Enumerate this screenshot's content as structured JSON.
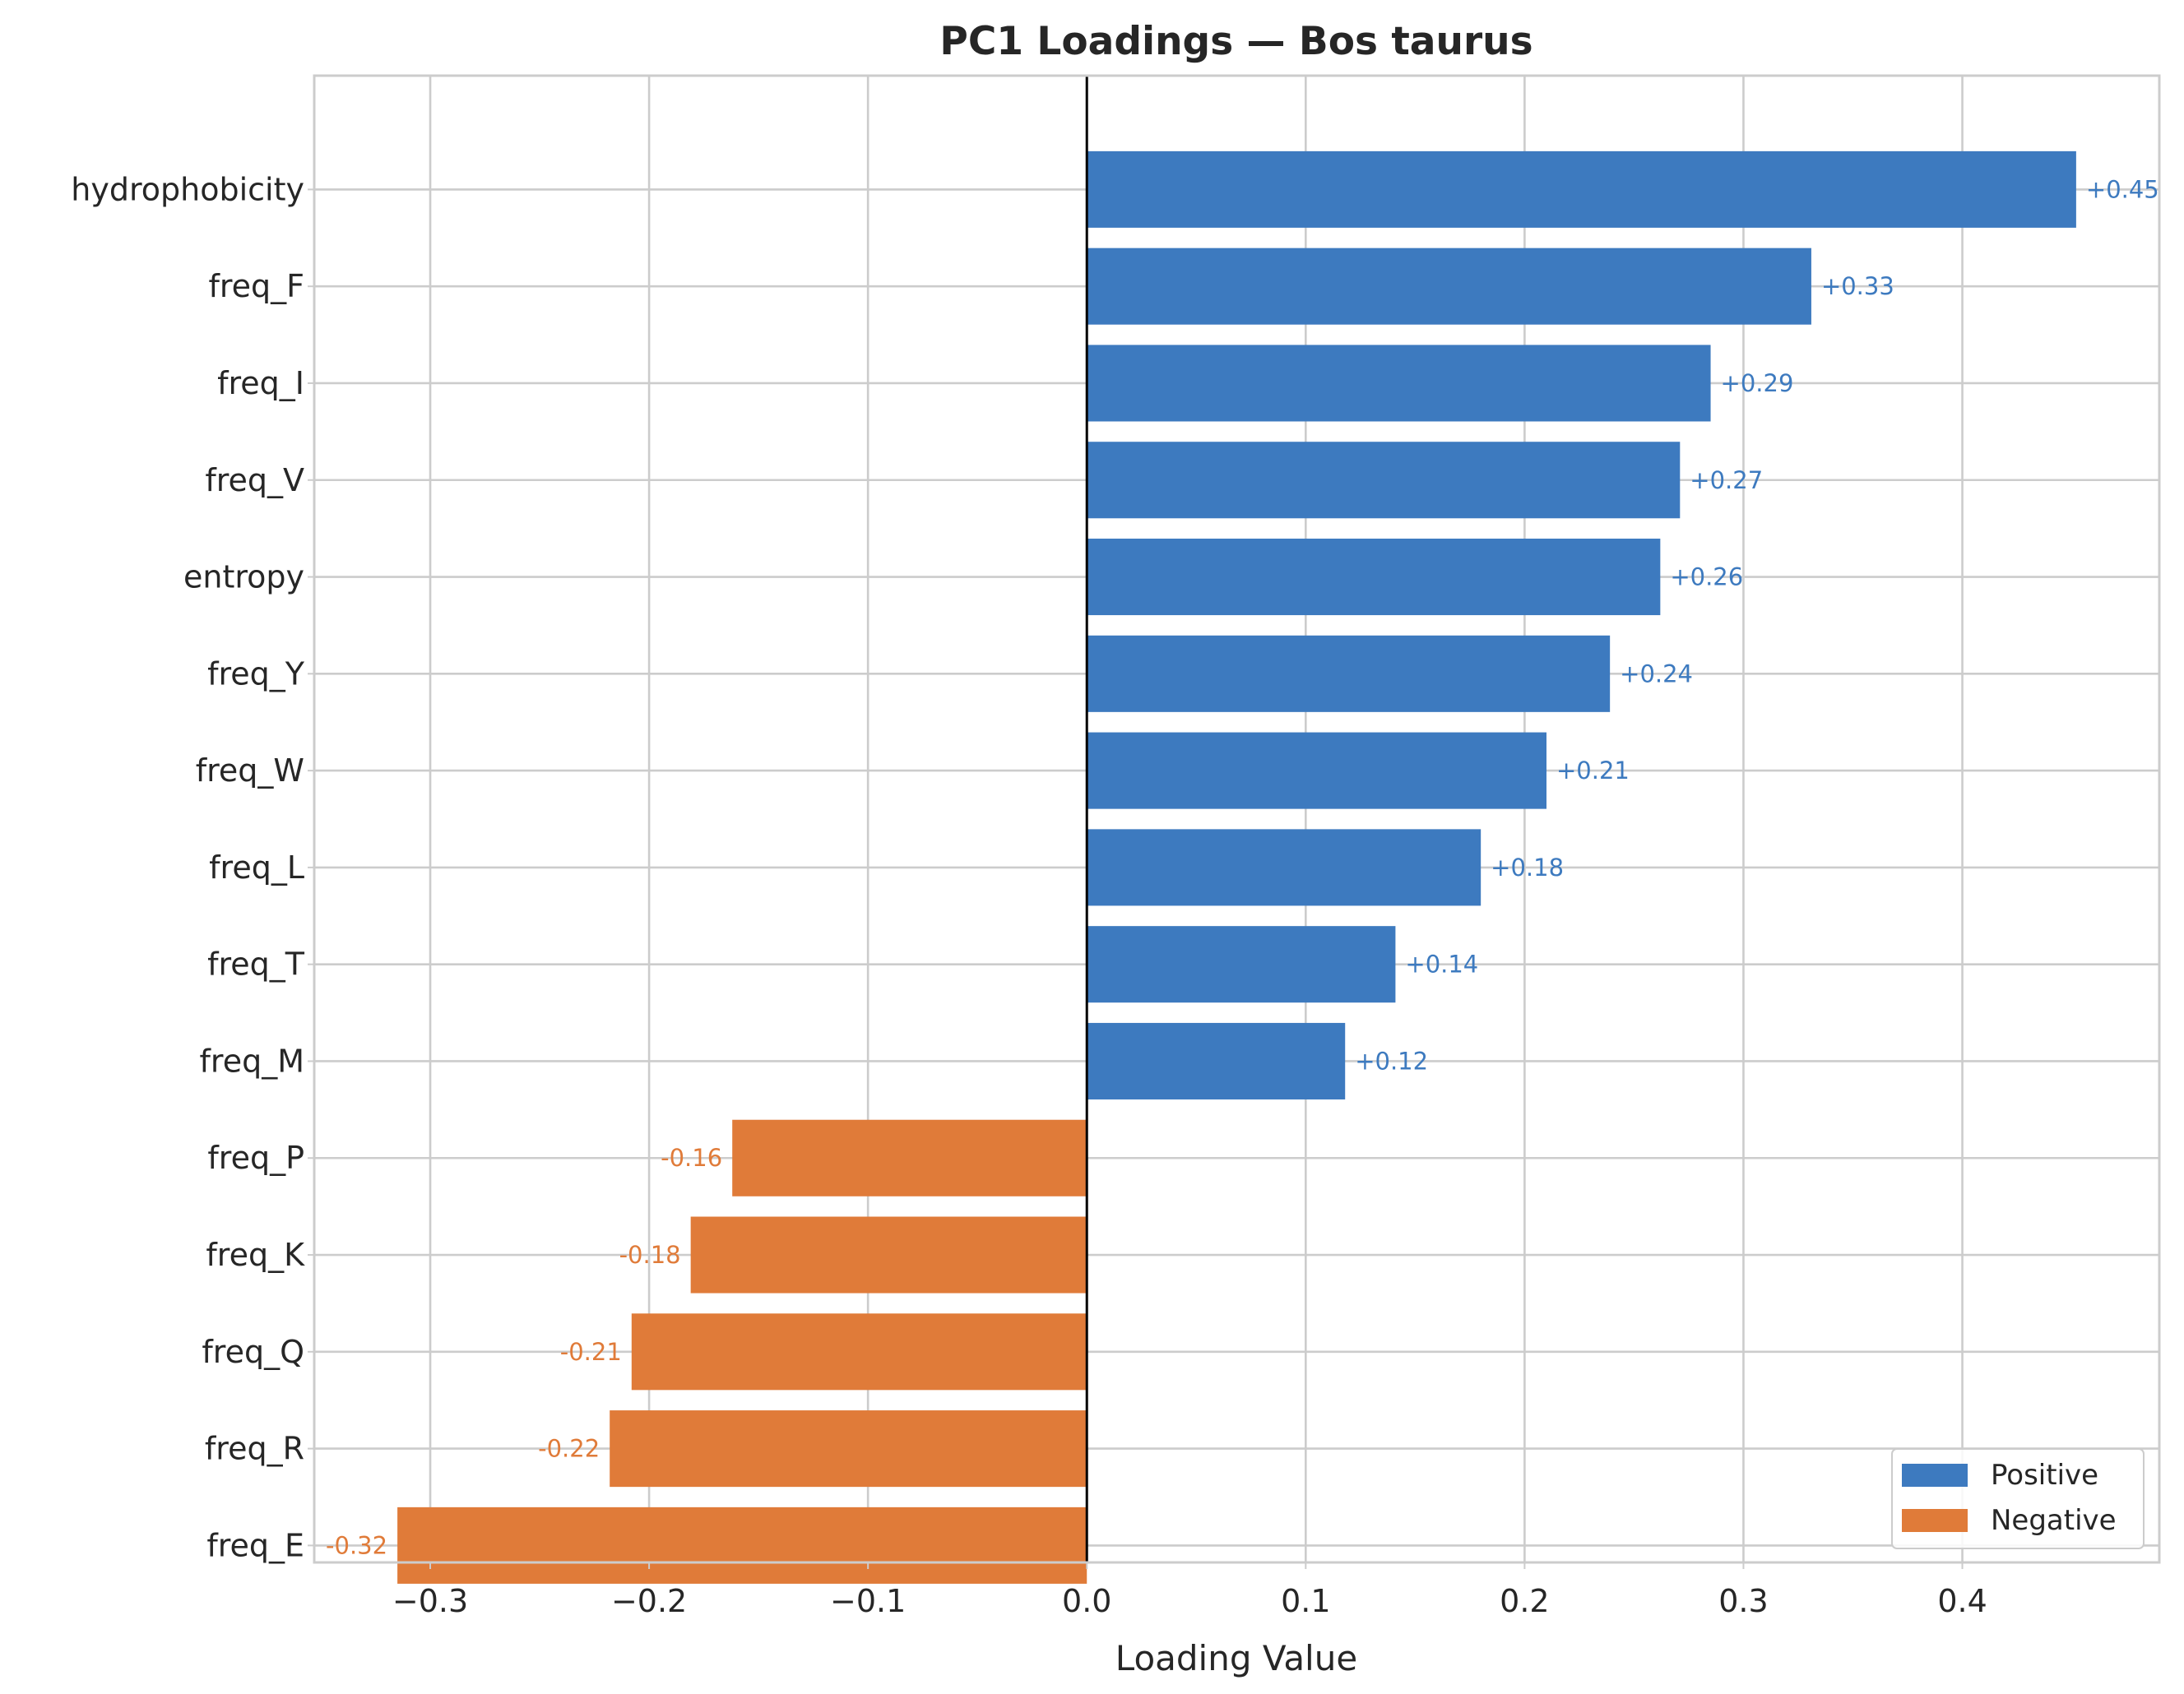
{
  "chart_data": {
    "type": "bar",
    "orientation": "horizontal",
    "title": "PC1 Loadings — Bos taurus",
    "xlabel": "Loading Value",
    "ylabel": "",
    "xlim": [
      -0.353,
      0.49
    ],
    "xticks": [
      -0.3,
      -0.2,
      -0.1,
      0.0,
      0.1,
      0.2,
      0.3,
      0.4
    ],
    "xtick_labels": [
      "−0.3",
      "−0.2",
      "−0.1",
      "0.0",
      "0.1",
      "0.2",
      "0.3",
      "0.4"
    ],
    "grid": true,
    "categories": [
      "hydrophobicity",
      "freq_F",
      "freq_I",
      "freq_V",
      "entropy",
      "freq_Y",
      "freq_W",
      "freq_L",
      "freq_T",
      "freq_M",
      "freq_P",
      "freq_K",
      "freq_Q",
      "freq_R",
      "freq_E"
    ],
    "values": [
      0.452,
      0.331,
      0.285,
      0.271,
      0.262,
      0.239,
      0.21,
      0.18,
      0.141,
      0.118,
      -0.162,
      -0.181,
      -0.208,
      -0.218,
      -0.315
    ],
    "data_labels": [
      "+0.45",
      "+0.33",
      "+0.29",
      "+0.27",
      "+0.26",
      "+0.24",
      "+0.21",
      "+0.18",
      "+0.14",
      "+0.12",
      "-0.16",
      "-0.18",
      "-0.21",
      "-0.22",
      "-0.32"
    ],
    "colors": {
      "positive": "#3d7abf",
      "negative": "#e07b39"
    },
    "legend": {
      "placement": "lower-right",
      "entries": [
        {
          "label": "Positive",
          "color": "#3d7abf"
        },
        {
          "label": "Negative",
          "color": "#e07b39"
        }
      ]
    }
  }
}
